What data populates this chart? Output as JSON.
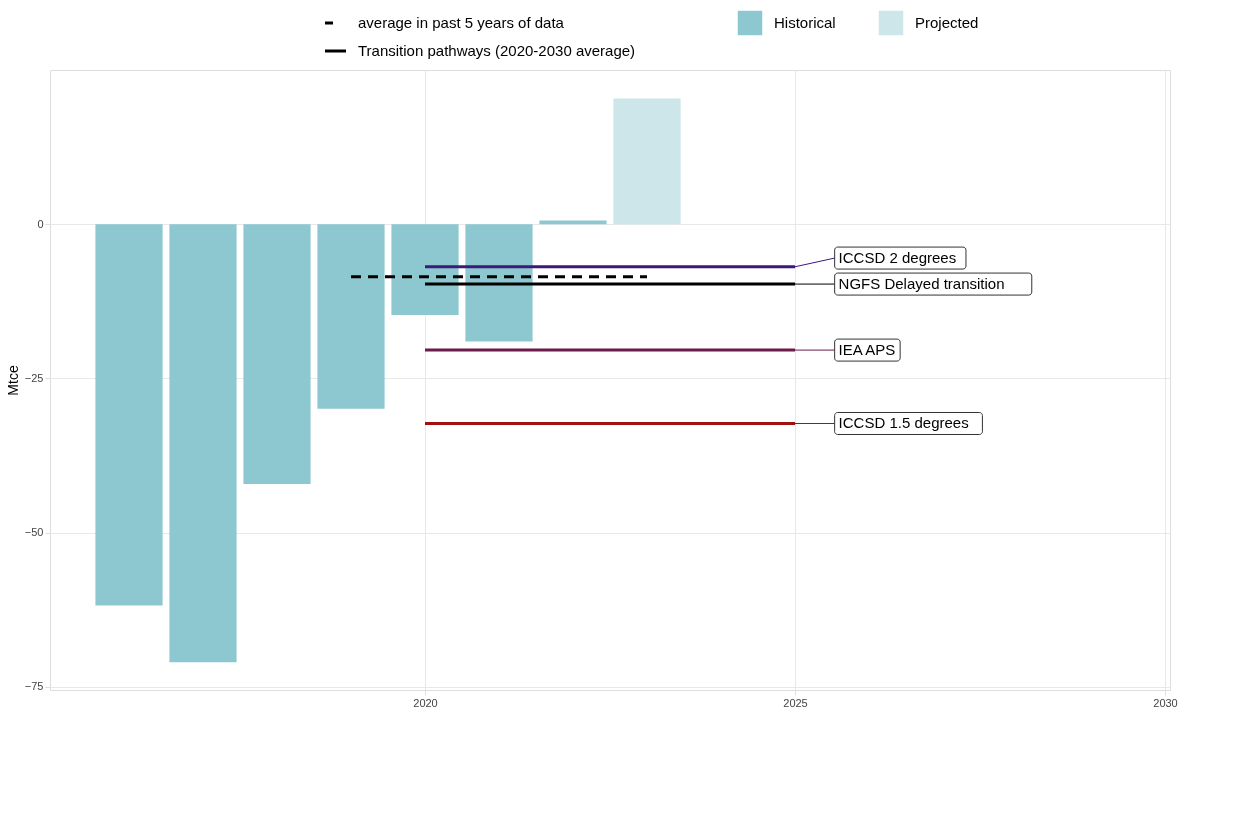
{
  "chart_data": {
    "type": "bar",
    "ylabel": "Mtce",
    "legend": "top",
    "grid": true,
    "xlim": [
      2015,
      2030
    ],
    "xticks": [
      2020,
      2025,
      2030
    ],
    "ylim": [
      -75.5,
      25
    ],
    "yticks": [
      -75,
      -50,
      -25,
      0
    ],
    "annotations": [
      "Transition pathways (2020-2030 average)"
    ],
    "series": [
      {
        "name": "Historical",
        "color": "#8dc8d0",
        "x": [
          2016,
          2017,
          2018,
          2019,
          2020,
          2021,
          2022
        ],
        "values": [
          -61.8,
          -71.0,
          -42.1,
          -29.9,
          -14.7,
          -19.0,
          0.6
        ]
      },
      {
        "name": "Projected",
        "color": "#cce6ea",
        "x": [
          2023
        ],
        "values": [
          20.4
        ]
      },
      {
        "name": "average in past 5 years of data",
        "type": "line",
        "line_style": "dashed",
        "color": "#000000",
        "x": [
          2019,
          2023
        ],
        "values": [
          -8.5,
          -8.5
        ]
      },
      {
        "name": "ICCSD 2 degrees",
        "type": "line",
        "line_style": "solid",
        "color": "#3b1a7a",
        "x": [
          2020,
          2025
        ],
        "values": [
          -6.9,
          -6.9
        ]
      },
      {
        "name": "NGFS Delayed transition",
        "type": "line",
        "line_style": "solid",
        "color": "#000000",
        "x": [
          2020,
          2025
        ],
        "values": [
          -9.7,
          -9.7
        ]
      },
      {
        "name": "IEA APS",
        "type": "line",
        "line_style": "solid",
        "color": "#6b1a4a",
        "x": [
          2020,
          2025
        ],
        "values": [
          -20.4,
          -20.4
        ]
      },
      {
        "name": "ICCSD 1.5 degrees",
        "type": "line",
        "line_style": "solid",
        "color": "#a01010",
        "x": [
          2020,
          2025
        ],
        "values": [
          -32.3,
          -32.3
        ]
      }
    ]
  }
}
